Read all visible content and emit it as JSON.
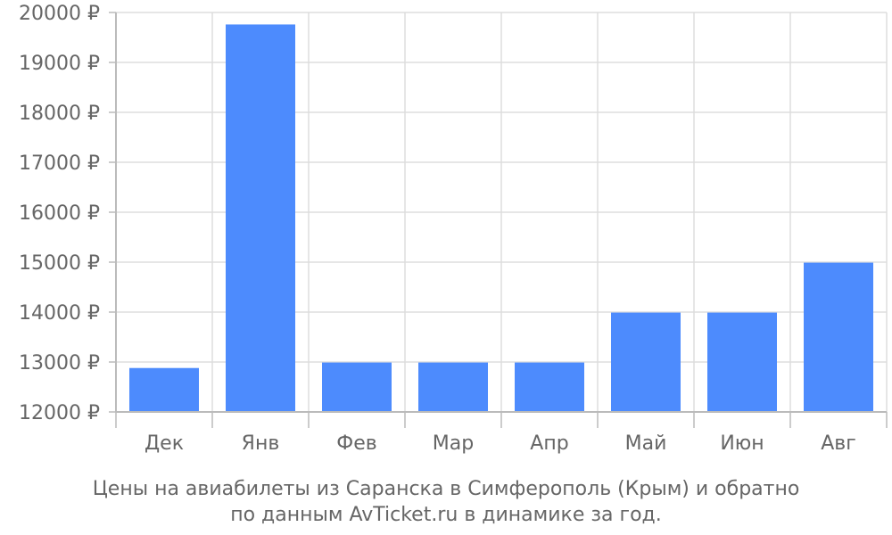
{
  "chart_data": {
    "type": "bar",
    "categories": [
      "Дек",
      "Янв",
      "Фев",
      "Мар",
      "Апр",
      "Май",
      "Июн",
      "Авг"
    ],
    "values": [
      12880,
      19760,
      12990,
      12990,
      12990,
      13990,
      13990,
      14990
    ],
    "ylim": [
      12000,
      20000
    ],
    "yticks": [
      12000,
      13000,
      14000,
      15000,
      16000,
      17000,
      18000,
      19000,
      20000
    ],
    "ytick_suffix": " ₽",
    "grid": true,
    "bar_color": "#4d8bfd",
    "title_lines": [
      "Цены на авиабилеты из Саранска в Симферополь (Крым) и обратно",
      "по данным AvTicket.ru в динамике за год."
    ]
  }
}
